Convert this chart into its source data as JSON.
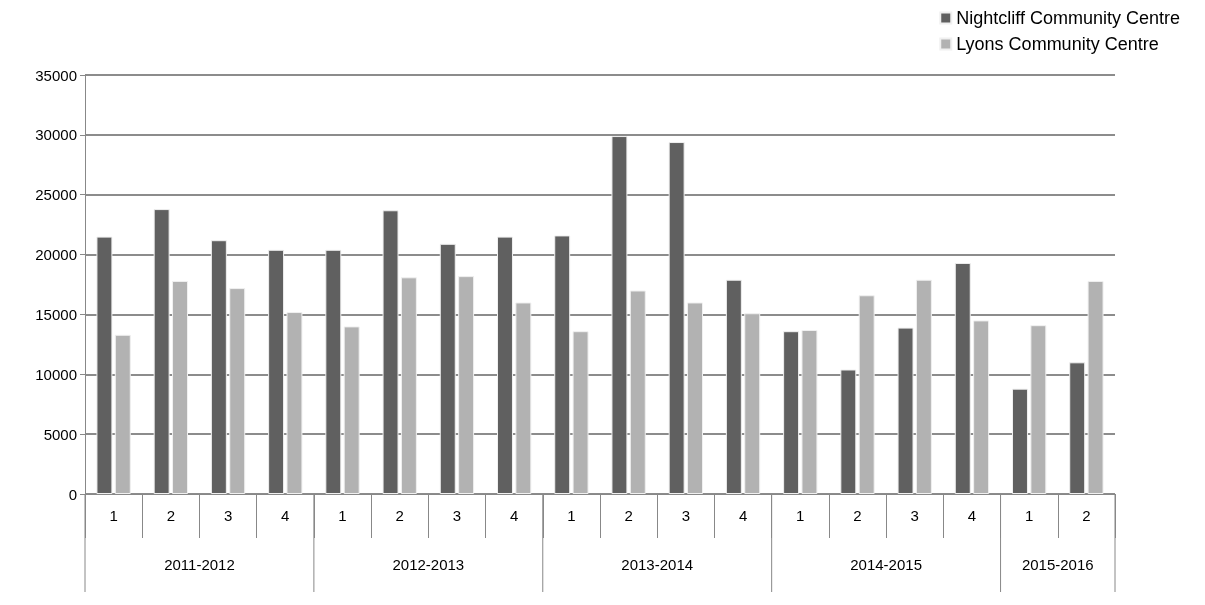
{
  "chart_data": {
    "type": "bar",
    "categories": [
      "1",
      "2",
      "3",
      "4",
      "1",
      "2",
      "3",
      "4",
      "1",
      "2",
      "3",
      "4",
      "1",
      "2",
      "3",
      "4",
      "1",
      "2"
    ],
    "series": [
      {
        "name": "Nightcliff Community Centre",
        "color": "#606060",
        "values": [
          21500,
          23800,
          21200,
          20400,
          20400,
          23700,
          20900,
          21500,
          21600,
          29900,
          29400,
          17900,
          13600,
          10400,
          13900,
          19300,
          8800,
          11000
        ]
      },
      {
        "name": "Lyons Community Centre",
        "color": "#b2b2b2",
        "values": [
          13300,
          17800,
          17200,
          15200,
          14000,
          18100,
          18200,
          16000,
          13600,
          17000,
          16000,
          15100,
          13700,
          16600,
          17900,
          14500,
          14100,
          17800
        ]
      }
    ],
    "annotations": [
      "2011-2012",
      "2012-2013",
      "2013-2014",
      "2014-2015",
      "2015-2016"
    ],
    "ylim": [
      0,
      35000
    ],
    "yticks": [
      0,
      5000,
      10000,
      15000,
      20000,
      25000,
      30000,
      35000
    ],
    "grid": "y",
    "legend": "top right"
  }
}
